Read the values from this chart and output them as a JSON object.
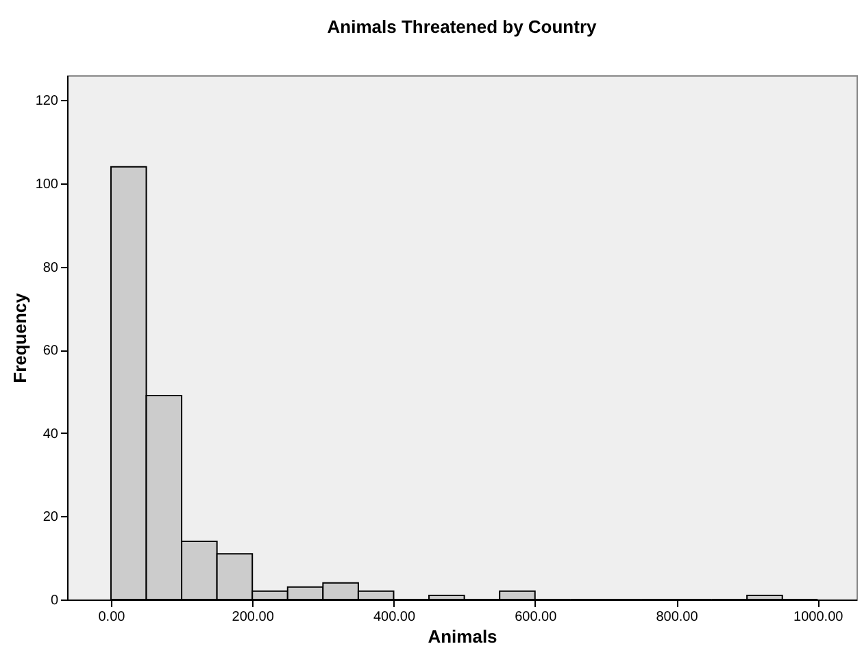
{
  "chart_data": {
    "type": "histogram",
    "title": "Animals Threatened by Country",
    "xlabel": "Animals",
    "ylabel": "Frequency",
    "bins": [
      0,
      50,
      100,
      150,
      200,
      250,
      300,
      350,
      400,
      450,
      500,
      550,
      600,
      650,
      700,
      750,
      800,
      850,
      900,
      950,
      1000
    ],
    "values": [
      104,
      49,
      14,
      11,
      2,
      3,
      4,
      2,
      0,
      1,
      0,
      2,
      0,
      0,
      0,
      0,
      0,
      0,
      1,
      0
    ],
    "color": "#cccccc",
    "xlim": [
      -62,
      1055
    ],
    "ylim": [
      0,
      126
    ],
    "xticks": [
      {
        "value": 0,
        "label": "0.00"
      },
      {
        "value": 200,
        "label": "200.00"
      },
      {
        "value": 400,
        "label": "400.00"
      },
      {
        "value": 600,
        "label": "600.00"
      },
      {
        "value": 800,
        "label": "800.00"
      },
      {
        "value": 1000,
        "label": "1000.00"
      }
    ],
    "yticks": [
      0,
      20,
      40,
      60,
      80,
      100,
      120
    ],
    "grid": false
  }
}
